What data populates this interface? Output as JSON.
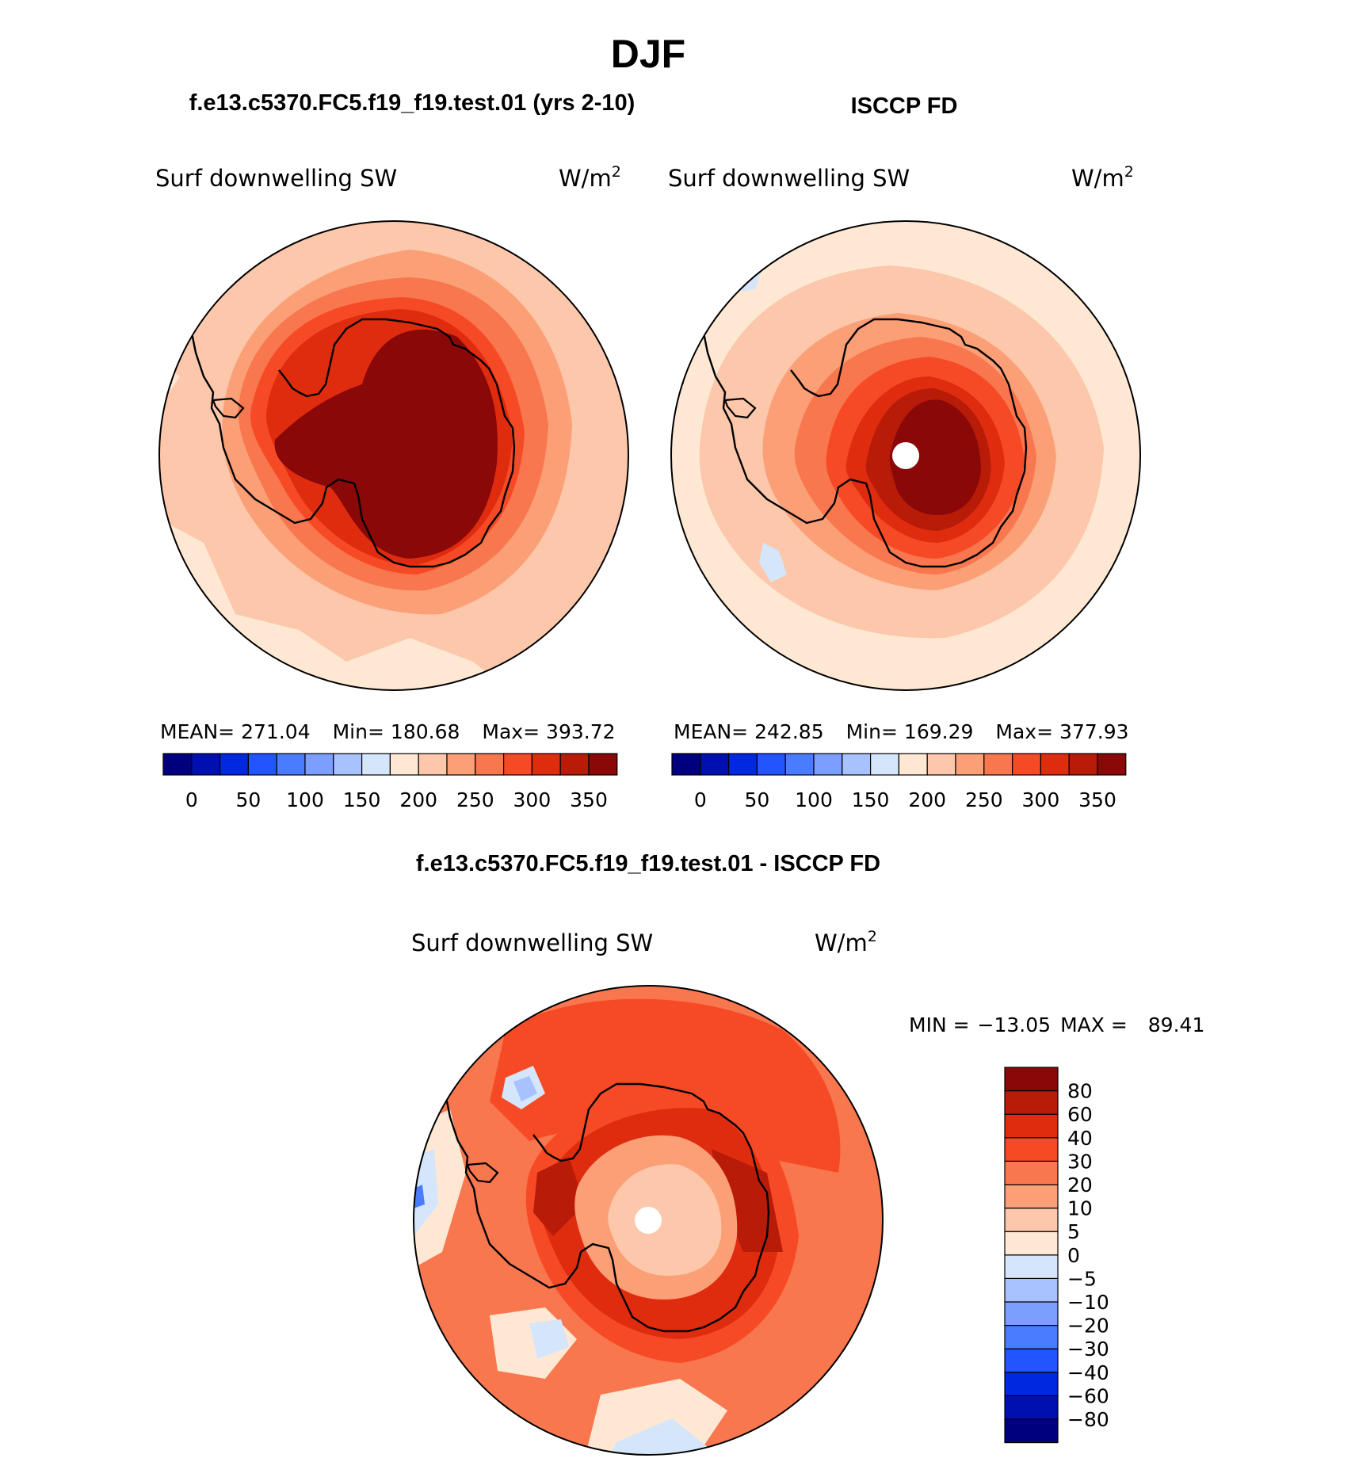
{
  "main_title": "DJF",
  "panels": {
    "model": {
      "title": "f.e13.c5370.FC5.f19_f19.test.01 (yrs 2-10)",
      "variable": "Surf downwelling SW",
      "units": "W/m",
      "units_exp": "2",
      "stats": {
        "mean_label": "MEAN=",
        "mean": "271.04",
        "min_label": "Min=",
        "min": "180.68",
        "max_label": "Max=",
        "max": "393.72"
      }
    },
    "obs": {
      "title": "ISCCP FD",
      "variable": "Surf downwelling SW",
      "units": "W/m",
      "units_exp": "2",
      "stats": {
        "mean_label": "MEAN=",
        "mean": "242.85",
        "min_label": "Min=",
        "min": "169.29",
        "max_label": "Max=",
        "max": "377.93"
      }
    },
    "diff": {
      "title": "f.e13.c5370.FC5.f19_f19.test.01 - ISCCP FD",
      "variable": "Surf downwelling SW",
      "units": "W/m",
      "units_exp": "2",
      "stats": {
        "min_label": "MIN =",
        "min": "−13.05",
        "max_label": "MAX =",
        "max": "89.41"
      }
    }
  },
  "colorbars": {
    "abs": {
      "colors": [
        "#00007f",
        "#0010b0",
        "#0028e0",
        "#2255ff",
        "#4a7cff",
        "#7c9fff",
        "#a8c1ff",
        "#d5e6fb",
        "#fee8d4",
        "#fcc7aa",
        "#fb9f77",
        "#f9774e",
        "#f64a26",
        "#e02c0e",
        "#b81c08",
        "#8a0808"
      ],
      "tick_labels": [
        "0",
        "50",
        "100",
        "150",
        "200",
        "250",
        "300",
        "350"
      ]
    },
    "diff": {
      "colors": [
        "#00007f",
        "#0010b0",
        "#0028e0",
        "#2255ff",
        "#4a7cff",
        "#7c9fff",
        "#a8c1ff",
        "#d5e6fb",
        "#fee8d4",
        "#fcc7aa",
        "#fb9f77",
        "#f9774e",
        "#f64a26",
        "#e02c0e",
        "#b81c08",
        "#8a0808"
      ],
      "tick_labels": [
        "−80",
        "−60",
        "−40",
        "−30",
        "−20",
        "−10",
        "−5",
        "0",
        "5",
        "10",
        "20",
        "30",
        "40",
        "60",
        "80"
      ]
    }
  }
}
